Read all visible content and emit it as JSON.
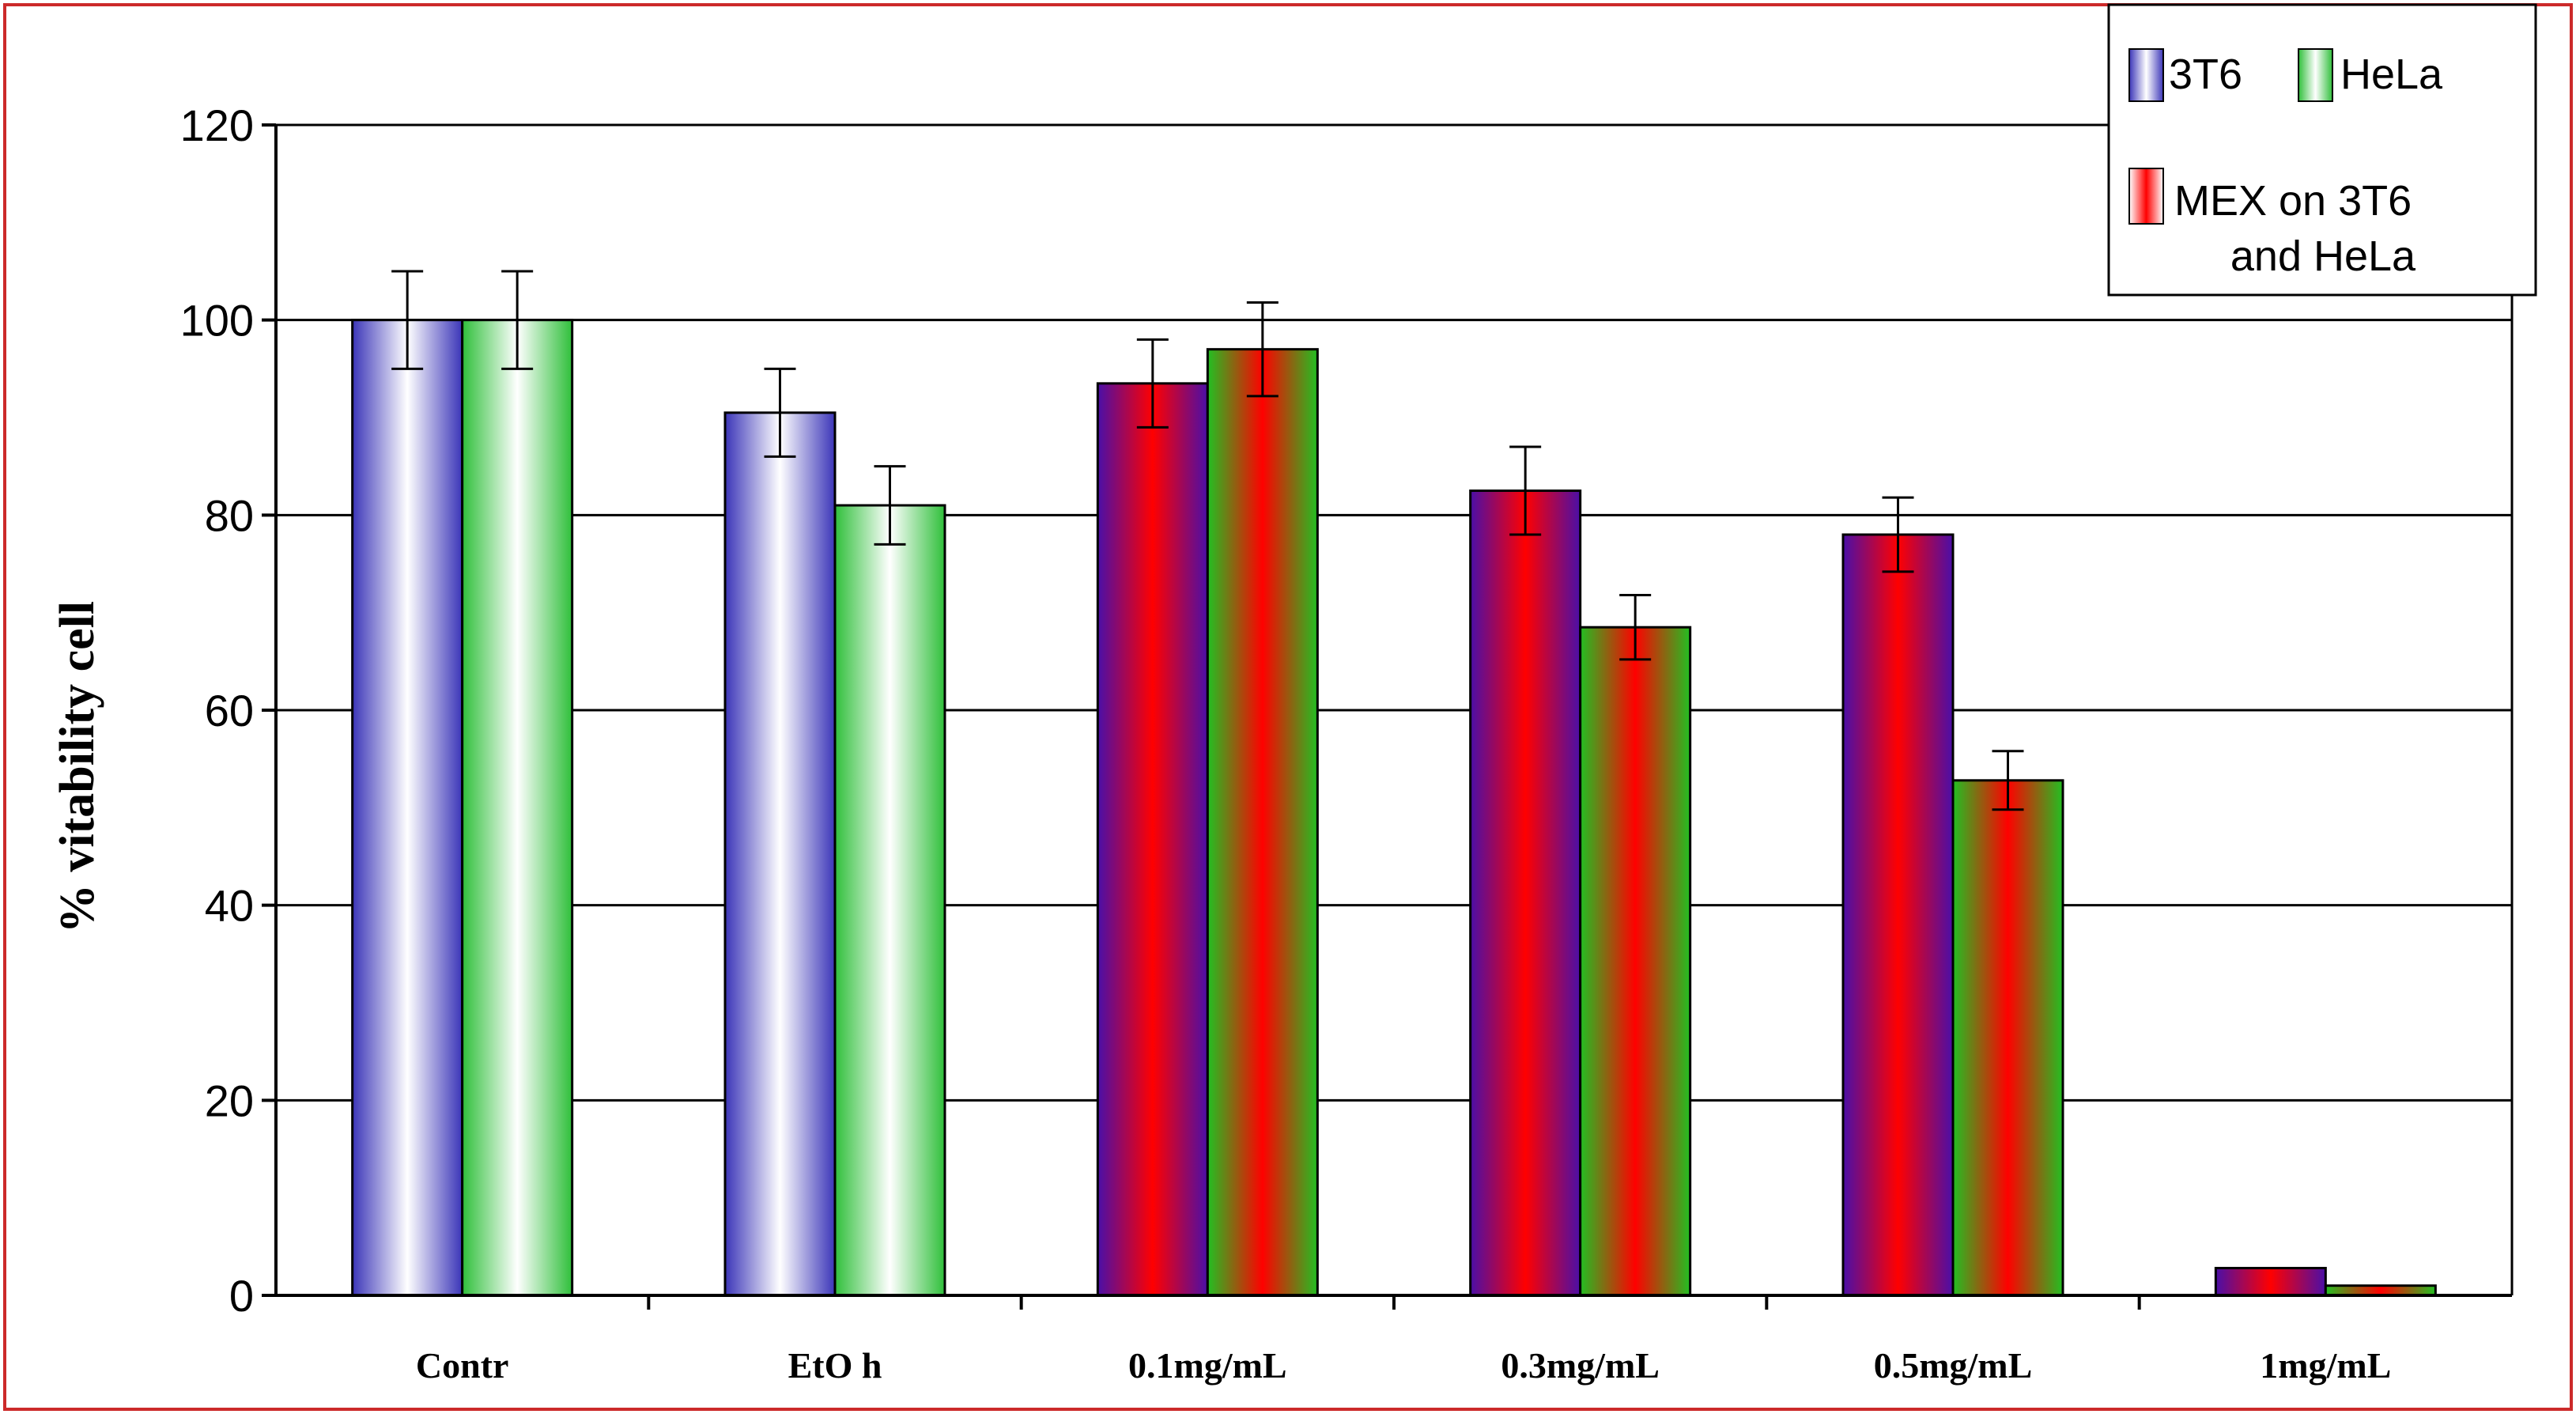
{
  "chart_data": {
    "type": "bar",
    "title": "",
    "xlabel": "",
    "ylabel": "% vitability cell",
    "ylim": [
      0,
      120
    ],
    "yticks": [
      0,
      20,
      40,
      60,
      80,
      100,
      120
    ],
    "grid": true,
    "legend_position": "top-right",
    "categories": [
      "Contr",
      "EtO h",
      "0.1mg/mL",
      "0.3mg/mL",
      "0.5mg/mL",
      "1mg/mL"
    ],
    "series": [
      {
        "name": "3T6",
        "values": [
          100,
          90.5,
          93.5,
          82.5,
          78,
          2.8
        ],
        "errors": [
          5,
          4.5,
          4.5,
          4.5,
          3.8,
          0
        ]
      },
      {
        "name": "HeLa",
        "values": [
          100,
          81,
          97,
          68.5,
          52.8,
          1
        ],
        "errors": [
          5,
          4,
          4.8,
          3.3,
          3,
          0
        ]
      }
    ],
    "bar_fill": [
      "control",
      "control",
      "mex",
      "mex",
      "mex",
      "mex"
    ],
    "legend": [
      {
        "key": "3t6",
        "label": "3T6",
        "fill": "blue-white"
      },
      {
        "key": "hela",
        "label": "HeLa",
        "fill": "green-white"
      },
      {
        "key": "mex",
        "label_lines": [
          "MEX on 3T6",
          "and HeLa"
        ],
        "fill": "red"
      }
    ],
    "colors": {
      "control_3t6_edge": "#3b35b8",
      "control_hela_edge": "#2fbf3a",
      "mex_3t6_edge": "#4a0fa8",
      "mex_hela_edge": "#22c022",
      "mex_center": "#ff0000",
      "frame_border": "#cc2a2a",
      "gridline": "#000000"
    }
  }
}
